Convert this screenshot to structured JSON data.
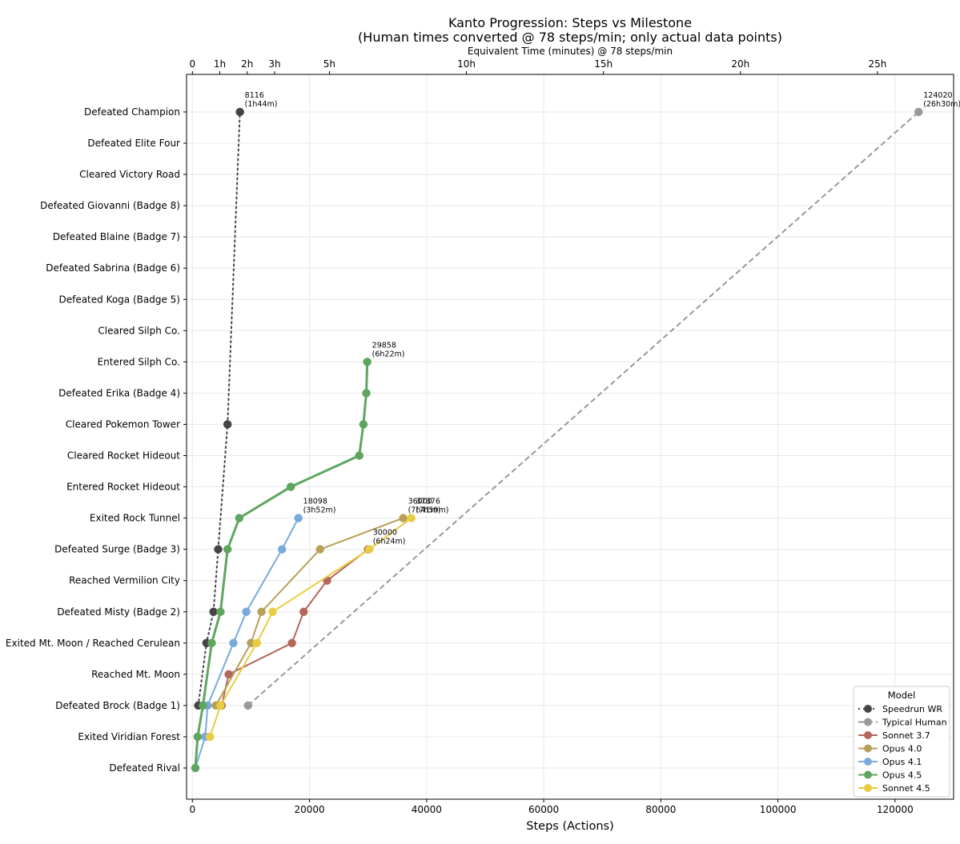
{
  "chart_data": {
    "type": "line",
    "title": "Kanto Progression: Steps vs Milestone",
    "subtitle": "(Human times converted @ 78 steps/min; only actual data points)",
    "xlabel": "Steps (Actions)",
    "ylabel": "",
    "top_xlabel": "Equivalent Time (minutes) @ 78 steps/min",
    "xlim": [
      -1000,
      130000
    ],
    "steps_per_minute": 78,
    "grid": true,
    "legend_title": "Model",
    "legend_position": "lower-right",
    "x_ticks": [
      "0",
      "20000",
      "40000",
      "60000",
      "80000",
      "100000",
      "120000"
    ],
    "top_ticks": [
      "0",
      "1h",
      "2h",
      "3h",
      "5h",
      "10h",
      "15h",
      "20h",
      "25h"
    ],
    "categories": [
      "Defeated Rival",
      "Exited Viridian Forest",
      "Defeated Brock (Badge 1)",
      "Reached Mt. Moon",
      "Exited Mt. Moon / Reached Cerulean",
      "Defeated Misty (Badge 2)",
      "Reached Vermilion City",
      "Defeated Surge (Badge 3)",
      "Exited Rock Tunnel",
      "Entered Rocket Hideout",
      "Cleared Rocket Hideout",
      "Cleared Pokemon Tower",
      "Defeated Erika (Badge 4)",
      "Entered Silph Co.",
      "Cleared Silph Co.",
      "Defeated Koga (Badge 5)",
      "Defeated Sabrina (Badge 6)",
      "Defeated Blaine (Badge 7)",
      "Defeated Giovanni (Badge 8)",
      "Cleared Victory Road",
      "Defeated Elite Four",
      "Defeated Champion"
    ],
    "series": [
      {
        "name": "Speedrun WR",
        "color": "#444444",
        "line": "dotted",
        "points": [
          [
            1000,
            2
          ],
          [
            2400,
            4
          ],
          [
            3600,
            5
          ],
          [
            4400,
            7
          ],
          [
            6000,
            11
          ],
          [
            8116,
            21
          ]
        ],
        "end_label": {
          "steps": "8116",
          "time": "(1h44m)"
        }
      },
      {
        "name": "Typical Human",
        "color": "#999999",
        "line": "dashed",
        "points": [
          [
            9500,
            2
          ],
          [
            124020,
            21
          ]
        ],
        "end_label": {
          "steps": "124020",
          "time": "(26h30m)"
        }
      },
      {
        "name": "Sonnet 3.7",
        "color": "#b5655a",
        "line": "solid",
        "points": [
          [
            5000,
            2
          ],
          [
            6200,
            3
          ],
          [
            17000,
            4
          ],
          [
            19000,
            5
          ],
          [
            23000,
            6
          ],
          [
            30000,
            7
          ]
        ],
        "end_label": {
          "steps": "30000",
          "time": "(6h24m)"
        }
      },
      {
        "name": "Opus 4.0",
        "color": "#b89f58",
        "line": "solid",
        "points": [
          [
            4000,
            2
          ],
          [
            10000,
            4
          ],
          [
            11800,
            5
          ],
          [
            21800,
            7
          ],
          [
            36000,
            8
          ]
        ],
        "end_label": {
          "steps": "36000",
          "time": "(7h41m)"
        }
      },
      {
        "name": "Opus 4.1",
        "color": "#7aa9dd",
        "line": "solid",
        "points": [
          [
            500,
            0
          ],
          [
            2200,
            1
          ],
          [
            2600,
            2
          ],
          [
            7000,
            4
          ],
          [
            9200,
            5
          ],
          [
            15300,
            7
          ],
          [
            18098,
            8
          ]
        ],
        "end_label": {
          "steps": "18098",
          "time": "(3h52m)"
        }
      },
      {
        "name": "Opus 4.5",
        "color": "#5ea65f",
        "line": "solid",
        "points": [
          [
            500,
            0
          ],
          [
            900,
            1
          ],
          [
            1800,
            2
          ],
          [
            3300,
            4
          ],
          [
            4800,
            5
          ],
          [
            6000,
            7
          ],
          [
            8000,
            8
          ],
          [
            16800,
            9
          ],
          [
            28500,
            10
          ],
          [
            29200,
            11
          ],
          [
            29700,
            12
          ],
          [
            29858,
            13
          ]
        ],
        "end_label": {
          "steps": "29858",
          "time": "(6h22m)"
        }
      },
      {
        "name": "Sonnet 4.5",
        "color": "#e8cd43",
        "line": "solid",
        "points": [
          [
            3000,
            1
          ],
          [
            4800,
            2
          ],
          [
            11000,
            4
          ],
          [
            13700,
            5
          ],
          [
            30200,
            7
          ],
          [
            37376,
            8
          ]
        ],
        "end_label": {
          "steps": "37376",
          "time": "(7h59m)"
        }
      }
    ]
  }
}
